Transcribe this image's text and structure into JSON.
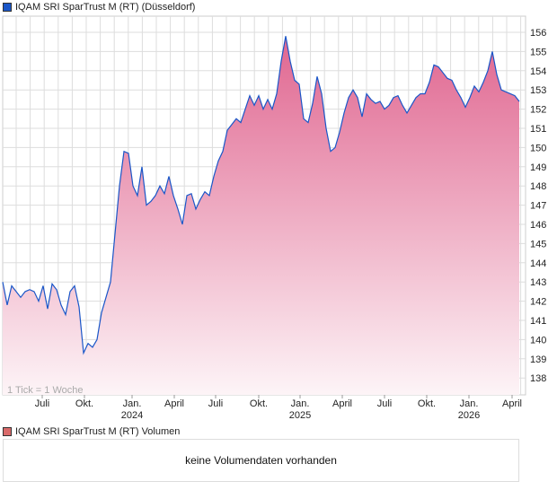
{
  "chart_data": {
    "type": "area",
    "title": "IQAM SRI SparTrust M (RT) (Düsseldorf)",
    "note": "1 Tick = 1 Woche",
    "y_ticks": [
      138,
      139,
      140,
      141,
      142,
      143,
      144,
      145,
      146,
      147,
      148,
      149,
      150,
      151,
      152,
      153,
      154,
      155,
      156
    ],
    "ylim": [
      137.2,
      156.9
    ],
    "x_ticks": [
      {
        "label": "Juli",
        "year": "",
        "index": 8.8
      },
      {
        "label": "Okt.",
        "year": "",
        "index": 18.2
      },
      {
        "label": "Jan.",
        "year": "2024",
        "index": 28.8
      },
      {
        "label": "April",
        "year": "",
        "index": 38.2
      },
      {
        "label": "Juli",
        "year": "",
        "index": 47.4
      },
      {
        "label": "Okt.",
        "year": "",
        "index": 57
      },
      {
        "label": "Jan.",
        "year": "2025",
        "index": 66.2
      },
      {
        "label": "April",
        "year": "",
        "index": 75.6
      },
      {
        "label": "Juli",
        "year": "",
        "index": 85
      },
      {
        "label": "Okt.",
        "year": "",
        "index": 94.4
      },
      {
        "label": "Jan.",
        "year": "2026",
        "index": 103.8
      },
      {
        "label": "April",
        "year": "",
        "index": 113.4
      }
    ],
    "values": [
      143,
      141.8,
      142.8,
      142.5,
      142.2,
      142.5,
      142.6,
      142.5,
      142.0,
      142.8,
      141.6,
      142.9,
      142.6,
      141.8,
      141.3,
      142.5,
      142.8,
      141.7,
      139.3,
      139.8,
      139.6,
      140.0,
      141.4,
      142.2,
      143.0,
      145.5,
      148.0,
      149.8,
      149.7,
      148.0,
      147.5,
      149.0,
      147.0,
      147.2,
      147.5,
      148.0,
      147.6,
      148.5,
      147.5,
      146.8,
      146.0,
      147.5,
      147.6,
      146.8,
      147.3,
      147.7,
      147.5,
      148.5,
      149.3,
      149.8,
      150.9,
      151.2,
      151.5,
      151.3,
      152.0,
      152.7,
      152.2,
      152.7,
      152.0,
      152.5,
      152.0,
      152.8,
      154.5,
      155.8,
      154.5,
      153.5,
      153.3,
      151.5,
      151.3,
      152.3,
      153.7,
      152.8,
      151.0,
      149.8,
      150.0,
      150.8,
      151.8,
      152.6,
      153.0,
      152.6,
      151.6,
      152.8,
      152.5,
      152.3,
      152.4,
      152.0,
      152.2,
      152.6,
      152.7,
      152.2,
      151.8,
      152.2,
      152.6,
      152.8,
      152.8,
      153.4,
      154.3,
      154.2,
      153.9,
      153.6,
      153.5,
      153.0,
      152.6,
      152.1,
      152.6,
      153.2,
      152.9,
      153.4,
      154.0,
      155.0,
      153.8,
      153.0,
      152.9,
      152.8,
      152.7,
      152.4
    ],
    "colors": {
      "line": "#1a56c8",
      "fill_top": "#e06690",
      "fill_bottom": "#fdf4f7",
      "grid": "#dddddd"
    }
  },
  "volume": {
    "title": "IQAM SRI SparTrust M (RT) Volumen",
    "message": "keine Volumendaten vorhanden"
  }
}
